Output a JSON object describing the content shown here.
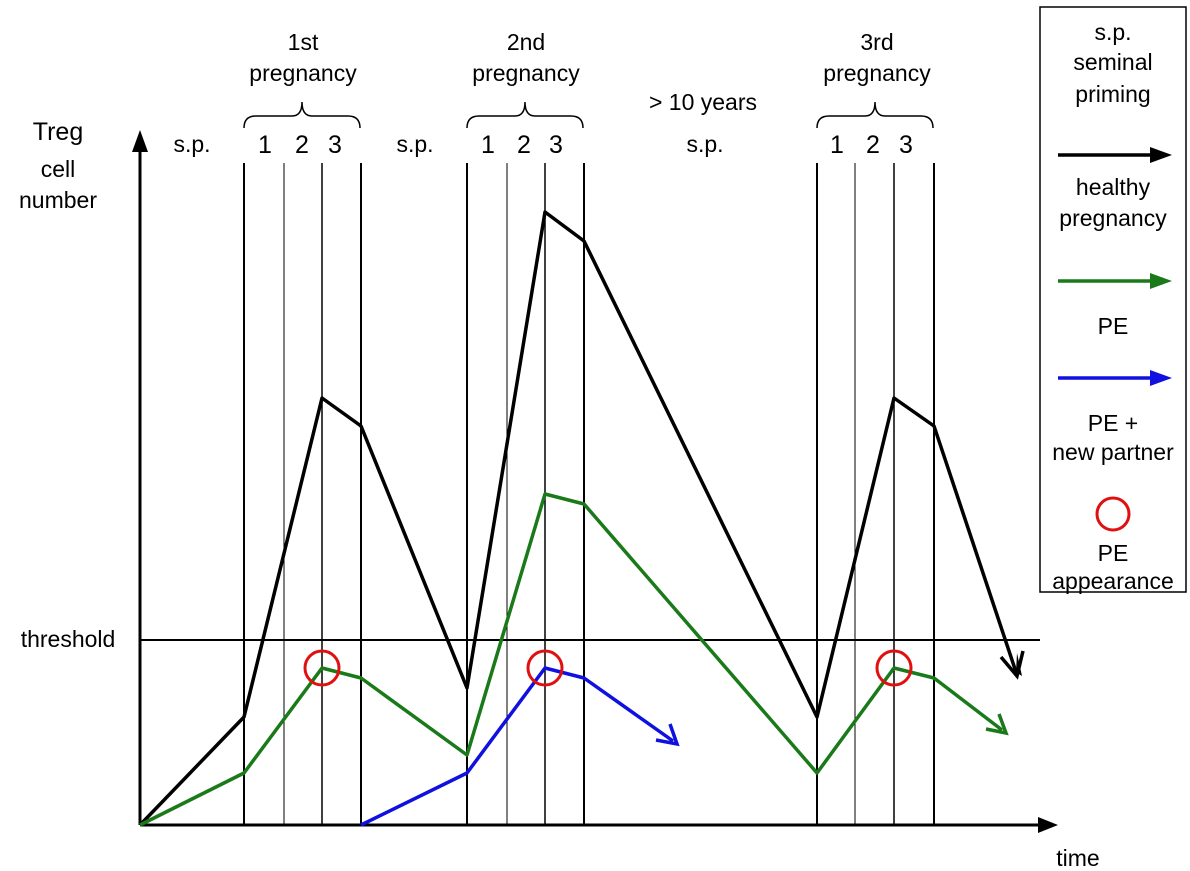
{
  "colors": {
    "healthy": "#000000",
    "pe": "#1a7a1a",
    "pe_new_partner": "#1010e0",
    "pe_marker": "#e01010",
    "axis": "#000000"
  },
  "axes": {
    "y_label_line1": "Treg",
    "y_label_line2": "cell",
    "y_label_line3": "number",
    "x_label": "time",
    "threshold_label": "threshold"
  },
  "phases": {
    "sp1": "s.p.",
    "sp2": "s.p.",
    "sp3_line1": "> 10 years",
    "sp3_line2": "s.p."
  },
  "pregnancies": [
    {
      "title_line1": "1st",
      "title_line2": "pregnancy",
      "trimesters": [
        "1",
        "2",
        "3"
      ]
    },
    {
      "title_line1": "2nd",
      "title_line2": "pregnancy",
      "trimesters": [
        "1",
        "2",
        "3"
      ]
    },
    {
      "title_line1": "3rd",
      "title_line2": "pregnancy",
      "trimesters": [
        "1",
        "2",
        "3"
      ]
    }
  ],
  "legend": {
    "sp_line1": "s.p.",
    "sp_line2": "seminal",
    "sp_line3": "priming",
    "healthy_line1": "healthy",
    "healthy_line2": "pregnancy",
    "pe": "PE",
    "pe_partner_line1": "PE +",
    "pe_partner_line2": "new partner",
    "pe_appearance_line1": "PE",
    "pe_appearance_line2": "appearance"
  }
}
